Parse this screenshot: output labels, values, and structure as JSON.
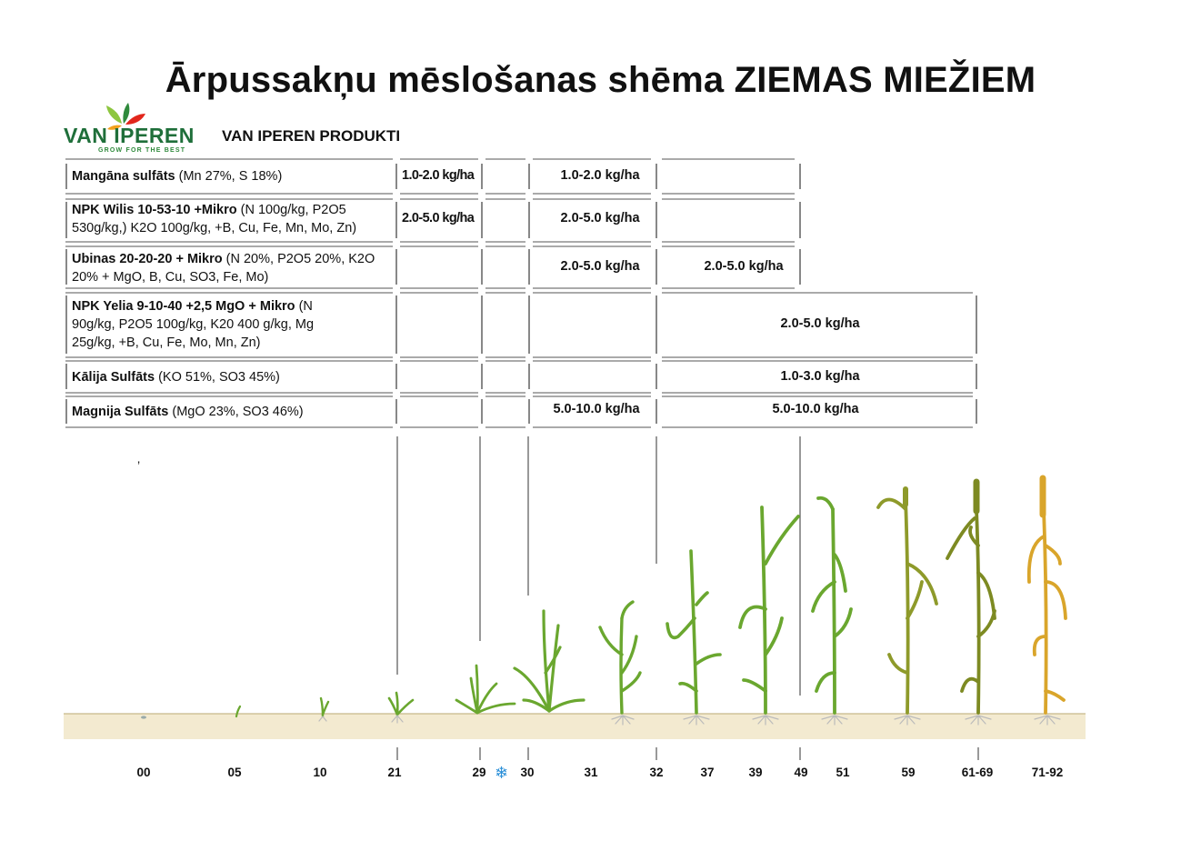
{
  "title": "Ārpussakņu mēslošanas shēma ZIEMAS MIEŽIEM",
  "brand": {
    "name": "VAN IPEREN",
    "tagline": "GROW FOR THE BEST",
    "section": "VAN IPEREN PRODUKTI",
    "colors": {
      "green": "#1f6f3a",
      "red": "#e2261c",
      "orange": "#f2a11d",
      "lime": "#8dc63f"
    }
  },
  "products": [
    {
      "name": "Mangāna sulfāts",
      "composition": "(Mn 27%, S 18%)",
      "rates": [
        {
          "value": "1.0-2.0 kg/ha",
          "from": "21",
          "to": "29"
        },
        {
          "value": "1.0-2.0 kg/ha",
          "from": "30",
          "to": "32"
        }
      ]
    },
    {
      "name": "NPK Wilis 10-53-10 +Mikro",
      "composition": "(N 100g/kg, P2O5 530g/kg,) K2O 100g/kg, +B, Cu, Fe, Mn, Mo, Zn)",
      "rates": [
        {
          "value": "2.0-5.0 kg/ha",
          "from": "21",
          "to": "29"
        },
        {
          "value": "2.0-5.0 kg/ha",
          "from": "30",
          "to": "32"
        }
      ]
    },
    {
      "name": "Ubinas 20-20-20 + Mikro",
      "composition": "(N 20%, P2O5 20%, K2O 20% + MgO, B, Cu, SO3, Fe, Mo)",
      "rates": [
        {
          "value": "2.0-5.0 kg/ha",
          "from": "30",
          "to": "32"
        },
        {
          "value": "2.0-5.0 kg/ha",
          "from": "32",
          "to": "49"
        }
      ]
    },
    {
      "name": "NPK Yelia 9-10-40 +2,5 MgO + Mikro",
      "composition": "(N 90g/kg, P2O5 100g/kg, K20 400 g/kg, Mg 25g/kg, +B, Cu, Fe, Mo, Mn, Zn)",
      "rates": [
        {
          "value": "2.0-5.0 kg/ha",
          "from": "32",
          "to": "61-69"
        }
      ]
    },
    {
      "name": "Kālija Sulfāts",
      "composition": "(KO 51%, SO3 45%)",
      "rates": [
        {
          "value": "1.0-3.0 kg/ha",
          "from": "32",
          "to": "61-69"
        }
      ]
    },
    {
      "name": "Magnija Sulfāts",
      "composition": "(MgO 23%, SO3 46%)",
      "rates": [
        {
          "value": "5.0-10.0 kg/ha",
          "from": "30",
          "to": "32"
        },
        {
          "value": "5.0-10.0 kg/ha",
          "from": "32",
          "to": "61-69"
        }
      ]
    }
  ],
  "stages": [
    "00",
    "05",
    "10",
    "21",
    "29",
    "30",
    "31",
    "32",
    "37",
    "39",
    "49",
    "51",
    "59",
    "61-69",
    "71-92"
  ],
  "winter_icon": "snowflake-icon",
  "stray_mark": "’",
  "plant_colors": {
    "green": "#6aa72f",
    "olive": "#8e9a2a",
    "darkolive": "#7d8a22",
    "golden": "#d9a52b"
  },
  "soil_color": "#f3ead0"
}
